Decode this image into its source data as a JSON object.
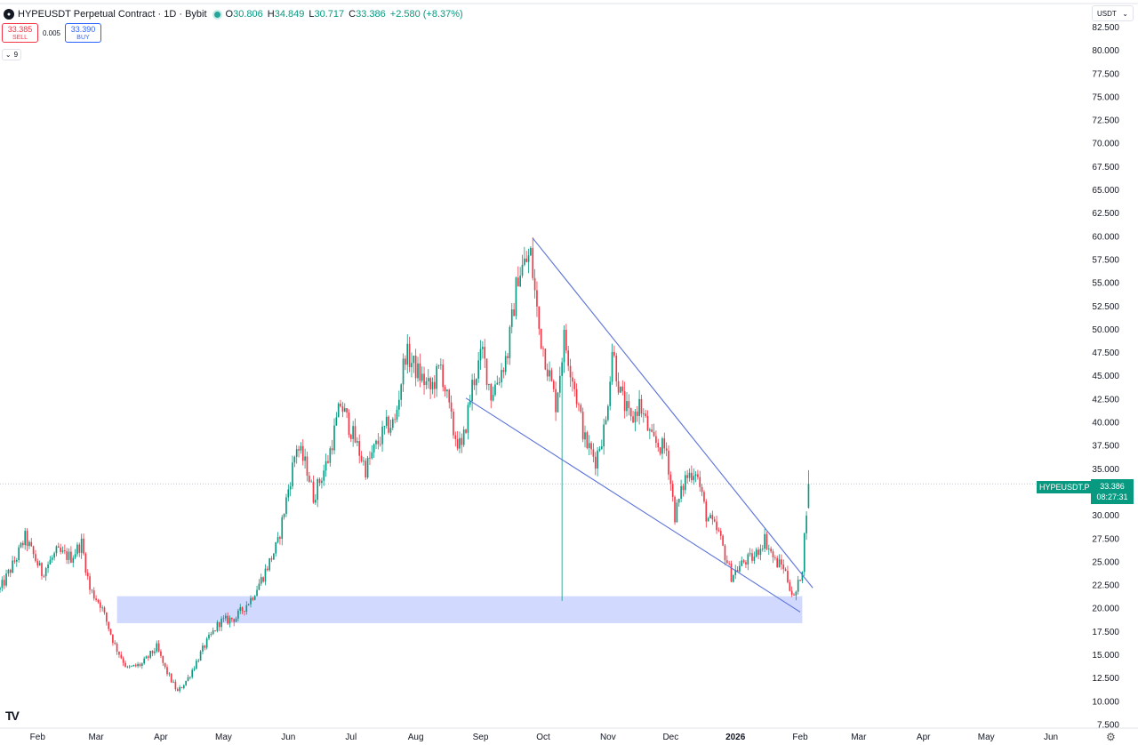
{
  "header": {
    "title": "HYPEUSDT Perpetual Contract · 1D · Bybit",
    "o_label": "O",
    "o_value": "30.806",
    "h_label": "H",
    "h_value": "34.849",
    "l_label": "L",
    "l_value": "30.717",
    "c_label": "C",
    "c_value": "33.386",
    "change": "+2.580 (+8.37%)"
  },
  "trade": {
    "sell_price": "33.385",
    "sell_label": "SELL",
    "spread": "0.005",
    "buy_price": "33.390",
    "buy_label": "BUY"
  },
  "indicator_count": "9",
  "currency": "USDT",
  "price_tag": {
    "symbol": "HYPEUSDT.P",
    "price": "33.386",
    "countdown": "08:27:31"
  },
  "colors": {
    "up": "#089981",
    "down": "#f23645",
    "trendline": "#5b73d9",
    "zone": "#ccd5ff"
  },
  "chart_data": {
    "type": "candlestick",
    "ylim": [
      7.5,
      83.5
    ],
    "y_ticks": [
      "82.500",
      "80.000",
      "77.500",
      "75.000",
      "72.500",
      "70.000",
      "67.500",
      "65.000",
      "62.500",
      "60.000",
      "57.500",
      "55.000",
      "52.500",
      "50.000",
      "47.500",
      "45.000",
      "42.500",
      "40.000",
      "37.500",
      "35.000",
      "32.500",
      "30.000",
      "27.500",
      "25.000",
      "22.500",
      "20.000",
      "17.500",
      "15.000",
      "12.500",
      "10.000",
      "7.500"
    ],
    "y_tick_values": [
      82.5,
      80,
      77.5,
      75,
      72.5,
      70,
      67.5,
      65,
      62.5,
      60,
      57.5,
      55,
      52.5,
      50,
      47.5,
      45,
      42.5,
      40,
      37.5,
      35,
      32.5,
      30,
      27.5,
      25,
      22.5,
      20,
      17.5,
      15,
      12.5,
      10,
      7.5
    ],
    "x_ticks": [
      {
        "label": "Feb",
        "date": "2025-02-01",
        "bold": false
      },
      {
        "label": "Mar",
        "date": "2025-03-01",
        "bold": false
      },
      {
        "label": "Apr",
        "date": "2025-04-01",
        "bold": false
      },
      {
        "label": "May",
        "date": "2025-05-01",
        "bold": false
      },
      {
        "label": "Jun",
        "date": "2025-06-01",
        "bold": false
      },
      {
        "label": "Jul",
        "date": "2025-07-01",
        "bold": false
      },
      {
        "label": "Aug",
        "date": "2025-08-01",
        "bold": false
      },
      {
        "label": "Sep",
        "date": "2025-09-01",
        "bold": false
      },
      {
        "label": "Oct",
        "date": "2025-10-01",
        "bold": false
      },
      {
        "label": "Nov",
        "date": "2025-11-01",
        "bold": false
      },
      {
        "label": "Dec",
        "date": "2025-12-01",
        "bold": false
      },
      {
        "label": "2026",
        "date": "2026-01-01",
        "bold": true
      },
      {
        "label": "Feb",
        "date": "2026-02-01",
        "bold": false
      },
      {
        "label": "Mar",
        "date": "2026-03-01",
        "bold": false
      },
      {
        "label": "Apr",
        "date": "2026-04-01",
        "bold": false
      },
      {
        "label": "May",
        "date": "2026-05-01",
        "bold": false
      },
      {
        "label": "Jun",
        "date": "2026-06-01",
        "bold": false
      }
    ],
    "x_range": [
      "2025-01-14",
      "2026-06-18"
    ],
    "path": [
      [
        "2025-01-14",
        22.0
      ],
      [
        "2025-01-22",
        25.5
      ],
      [
        "2025-01-26",
        27.6
      ],
      [
        "2025-02-03",
        23.8
      ],
      [
        "2025-02-10",
        26.0
      ],
      [
        "2025-02-17",
        25.5
      ],
      [
        "2025-02-22",
        27.0
      ],
      [
        "2025-02-26",
        22.0
      ],
      [
        "2025-03-03",
        20.5
      ],
      [
        "2025-03-10",
        16.0
      ],
      [
        "2025-03-16",
        13.5
      ],
      [
        "2025-03-23",
        14.0
      ],
      [
        "2025-03-30",
        15.8
      ],
      [
        "2025-04-03",
        13.5
      ],
      [
        "2025-04-09",
        11.0
      ],
      [
        "2025-04-14",
        12.5
      ],
      [
        "2025-04-22",
        16.0
      ],
      [
        "2025-04-29",
        18.5
      ],
      [
        "2025-05-07",
        19.0
      ],
      [
        "2025-05-14",
        21.0
      ],
      [
        "2025-05-20",
        23.5
      ],
      [
        "2025-05-27",
        27.0
      ],
      [
        "2025-06-02",
        34.0
      ],
      [
        "2025-06-05",
        37.5
      ],
      [
        "2025-06-10",
        35.0
      ],
      [
        "2025-06-13",
        32.0
      ],
      [
        "2025-06-20",
        36.0
      ],
      [
        "2025-06-26",
        42.0
      ],
      [
        "2025-07-03",
        38.0
      ],
      [
        "2025-07-08",
        35.0
      ],
      [
        "2025-07-12",
        37.0
      ],
      [
        "2025-07-18",
        39.5
      ],
      [
        "2025-07-22",
        40.0
      ],
      [
        "2025-07-27",
        47.5
      ],
      [
        "2025-08-03",
        45.0
      ],
      [
        "2025-08-08",
        43.5
      ],
      [
        "2025-08-13",
        46.0
      ],
      [
        "2025-08-19",
        39.0
      ],
      [
        "2025-08-23",
        37.0
      ],
      [
        "2025-08-28",
        44.0
      ],
      [
        "2025-09-02",
        47.5
      ],
      [
        "2025-09-06",
        43.0
      ],
      [
        "2025-09-10",
        45.0
      ],
      [
        "2025-09-14",
        47.5
      ],
      [
        "2025-09-19",
        56.0
      ],
      [
        "2025-09-25",
        58.0
      ],
      [
        "2025-09-29",
        50.0
      ],
      [
        "2025-10-03",
        46.0
      ],
      [
        "2025-10-07",
        42.0
      ],
      [
        "2025-10-11",
        49.0
      ],
      [
        "2025-10-15",
        45.0
      ],
      [
        "2025-10-21",
        38.0
      ],
      [
        "2025-10-26",
        36.0
      ],
      [
        "2025-10-31",
        40.0
      ],
      [
        "2025-11-03",
        48.0
      ],
      [
        "2025-11-07",
        43.0
      ],
      [
        "2025-11-12",
        40.0
      ],
      [
        "2025-11-16",
        42.0
      ],
      [
        "2025-11-22",
        38.0
      ],
      [
        "2025-11-29",
        37.0
      ],
      [
        "2025-12-03",
        30.0
      ],
      [
        "2025-12-08",
        34.0
      ],
      [
        "2025-12-13",
        35.0
      ],
      [
        "2025-12-18",
        30.0
      ],
      [
        "2025-12-24",
        28.0
      ],
      [
        "2025-12-30",
        23.5
      ],
      [
        "2026-01-05",
        25.0
      ],
      [
        "2026-01-10",
        25.5
      ],
      [
        "2026-01-15",
        27.5
      ],
      [
        "2026-01-20",
        25.0
      ],
      [
        "2026-01-24",
        24.5
      ],
      [
        "2026-01-29",
        21.0
      ],
      [
        "2026-01-31",
        22.5
      ],
      [
        "2026-02-02",
        24.5
      ],
      [
        "2026-02-04",
        30.8
      ]
    ],
    "last_candle": {
      "date": "2026-02-05",
      "open": 30.806,
      "high": 34.849,
      "low": 30.717,
      "close": 33.386
    },
    "anomaly_wick": {
      "date": "2025-10-10",
      "low": 20.8
    },
    "last_price_line": 33.386,
    "drawings": {
      "upper_trendline": {
        "start": [
          "2025-09-26",
          59.8
        ],
        "end": [
          "2026-02-07",
          22.2
        ]
      },
      "lower_trendline": {
        "start": [
          "2025-08-25",
          42.6
        ],
        "end": [
          "2026-02-01",
          19.6
        ]
      },
      "support_zone": {
        "from": "2025-03-11",
        "to": "2026-02-02",
        "low": 18.4,
        "high": 21.3
      }
    }
  }
}
